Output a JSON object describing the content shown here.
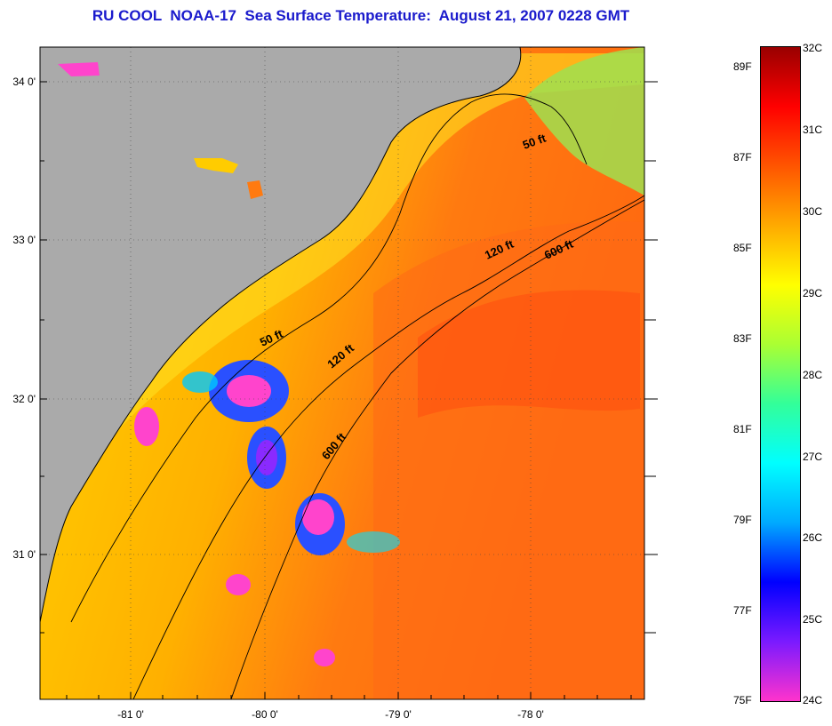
{
  "title": "RU COOL  NOAA-17  Sea Surface Temperature:  August 21, 2007 0228 GMT",
  "map": {
    "lon_labels": [
      "-81 0'",
      "-80 0'",
      "-79 0'",
      "-78 0'"
    ],
    "lat_labels": [
      "34 0'",
      "33 0'",
      "32 0'",
      "31 0'"
    ],
    "contour_labels": [
      "50 ft",
      "50 ft",
      "120 ft",
      "120 ft",
      "600 ft",
      "600 ft"
    ]
  },
  "colorbar": {
    "celsius_labels": [
      "32C",
      "31C",
      "30C",
      "29C",
      "28C",
      "27C",
      "26C",
      "25C",
      "24C"
    ],
    "fahrenheit_labels": [
      "89F",
      "87F",
      "85F",
      "83F",
      "81F",
      "79F",
      "77F",
      "75F"
    ],
    "colors": [
      "#ff33cc",
      "#7a1aff",
      "#0000ff",
      "#00aaff",
      "#00ffff",
      "#33ff99",
      "#aaff33",
      "#ffff00",
      "#ffaa00",
      "#ff5500",
      "#ff0000",
      "#990000"
    ]
  }
}
